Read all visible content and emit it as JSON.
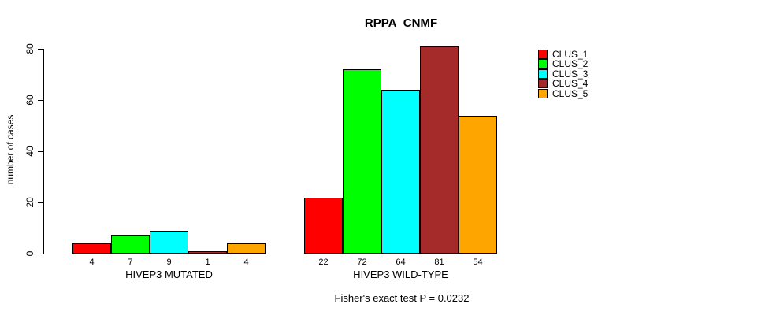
{
  "chart_data": {
    "type": "bar",
    "title": "RPPA_CNMF",
    "xlabel": "",
    "ylabel": "number of cases",
    "ylim": [
      0,
      80
    ],
    "yticks": [
      0,
      20,
      40,
      60,
      80
    ],
    "categories": [
      "HIVEP3 MUTATED",
      "HIVEP3 WILD-TYPE"
    ],
    "series": [
      {
        "name": "CLUS_1",
        "color": "#FF0000",
        "values": [
          4,
          22
        ]
      },
      {
        "name": "CLUS_2",
        "color": "#00FF00",
        "values": [
          7,
          72
        ]
      },
      {
        "name": "CLUS_3",
        "color": "#00FFFF",
        "values": [
          9,
          64
        ]
      },
      {
        "name": "CLUS_4",
        "color": "#A52A2A",
        "values": [
          1,
          81
        ]
      },
      {
        "name": "CLUS_5",
        "color": "#FFA500",
        "values": [
          4,
          54
        ]
      }
    ],
    "bar_value_labels": [
      [
        "4",
        "7",
        "9",
        "1",
        "4"
      ],
      [
        "22",
        "72",
        "64",
        "81",
        "54"
      ]
    ],
    "annotation": "Fisher's exact test P = 0.0232",
    "grid": false,
    "legend_position": "right",
    "axis_color": "#000000",
    "bar_border_color": "#000000"
  }
}
